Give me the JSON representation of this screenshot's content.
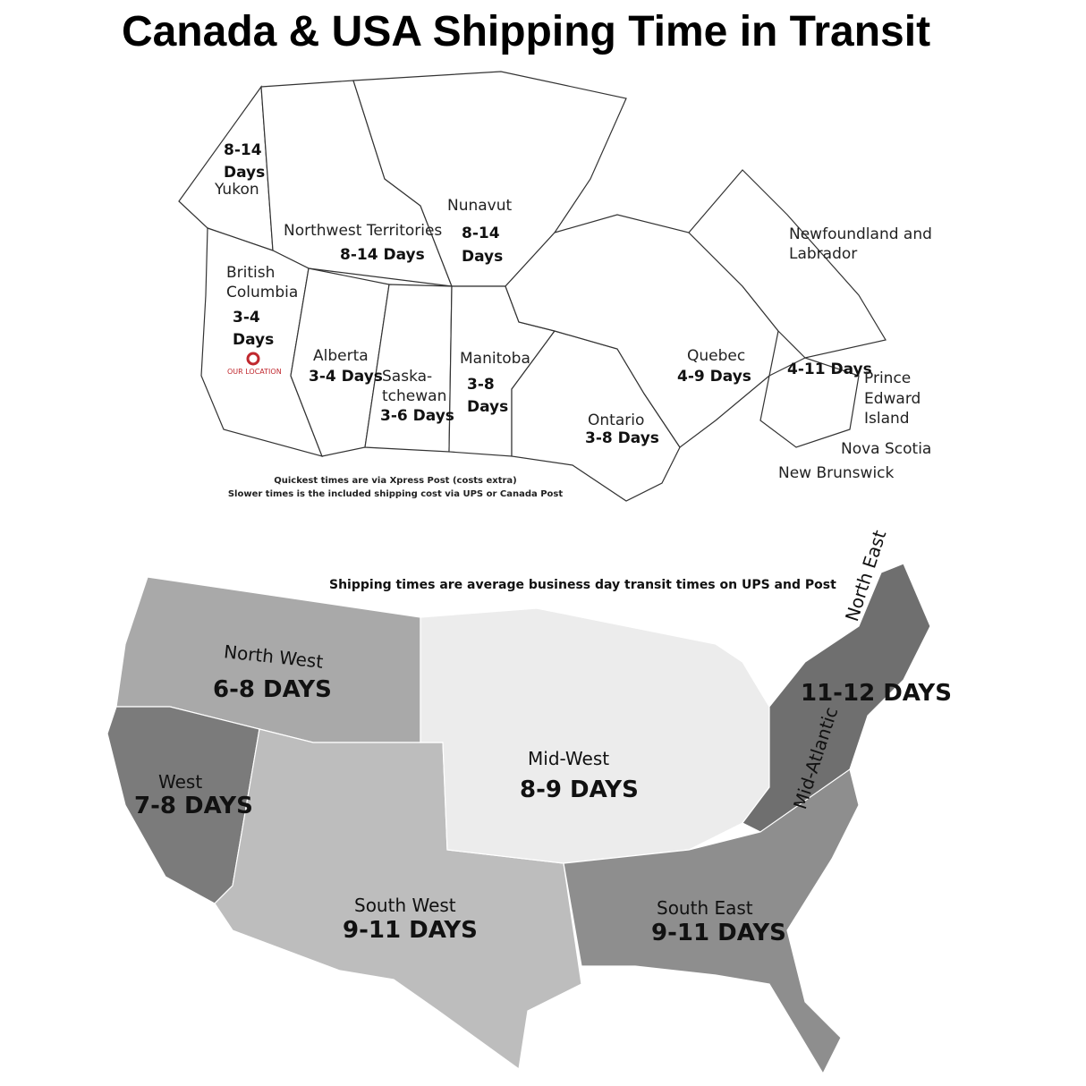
{
  "title": "Canada & USA Shipping Time in Transit",
  "canada": {
    "regions": [
      {
        "name": "Yukon",
        "days": "8-14 Days"
      },
      {
        "name": "Northwest Territories",
        "days": "8-14 Days"
      },
      {
        "name": "Nunavut",
        "days": "8-14 Days"
      },
      {
        "name": "British Columbia",
        "days": "3-4 Days"
      },
      {
        "name": "Alberta",
        "days": "3-4 Days"
      },
      {
        "name": "Saska-tchewan",
        "days": "3-6 Days"
      },
      {
        "name": "Manitoba",
        "days": "3-8 Days"
      },
      {
        "name": "Ontario",
        "days": "3-8 Days"
      },
      {
        "name": "Quebec",
        "days": "4-9 Days"
      },
      {
        "name": "Newfoundland and Labrador",
        "days": ""
      },
      {
        "name": "Prince Edward Island",
        "days": "4-11 Days"
      },
      {
        "name": "Nova Scotia",
        "days": ""
      },
      {
        "name": "New Brunswick",
        "days": ""
      }
    ],
    "labels": {
      "yukon_days_1": "8-14",
      "yukon_days_2": "Days",
      "yukon": "Yukon",
      "nwt": "Northwest Territories",
      "nwt_days": "8-14 Days",
      "nunavut": "Nunavut",
      "nunavut_days_1": "8-14",
      "nunavut_days_2": "Days",
      "bc_1": "British",
      "bc_2": "Columbia",
      "bc_days_1": "3-4",
      "bc_days_2": "Days",
      "our_location": "OUR LOCATION",
      "alberta": "Alberta",
      "alberta_days": "3-4 Days",
      "sask_1": "Saska-",
      "sask_2": "tchewan",
      "sask_days": "3-6 Days",
      "manitoba": "Manitoba",
      "manitoba_days_1": "3-8",
      "manitoba_days_2": "Days",
      "ontario": "Ontario",
      "ontario_days": "3-8 Days",
      "quebec": "Quebec",
      "quebec_days": "4-9 Days",
      "nfl_1": "Newfoundland and",
      "nfl_2": "Labrador",
      "maritimes_days": "4-11 Days",
      "pei_1": "Prince",
      "pei_2": "Edward",
      "pei_3": "Island",
      "nova_scotia": "Nova Scotia",
      "new_brunswick": "New Brunswick"
    },
    "note_1": "Quickest times are via Xpress Post (costs extra)",
    "note_2": "Slower times is the included shipping cost via UPS or Canada Post",
    "location_marker_color": "#c0282e"
  },
  "usa": {
    "note": "Shipping times are average business day transit times on UPS and Post",
    "regions": {
      "north_west": {
        "name": "North West",
        "days": "6-8 DAYS",
        "color": "#a9a9a9"
      },
      "west": {
        "name": "West",
        "days": "7-8 DAYS",
        "color": "#7b7b7b"
      },
      "south_west": {
        "name": "South West",
        "days": "9-11 DAYS",
        "color": "#bdbdbd"
      },
      "mid_west": {
        "name": "Mid-West",
        "days": "8-9 DAYS",
        "color": "#ececec"
      },
      "north_east": {
        "name": "North East",
        "days": "11-12 DAYS",
        "color": "#6f6f6f"
      },
      "mid_atlantic": {
        "name": "Mid-Atlantic",
        "days": "",
        "color": "#6f6f6f"
      },
      "south_east": {
        "name": "South East",
        "days": "9-11 DAYS",
        "color": "#8e8e8e"
      }
    }
  }
}
